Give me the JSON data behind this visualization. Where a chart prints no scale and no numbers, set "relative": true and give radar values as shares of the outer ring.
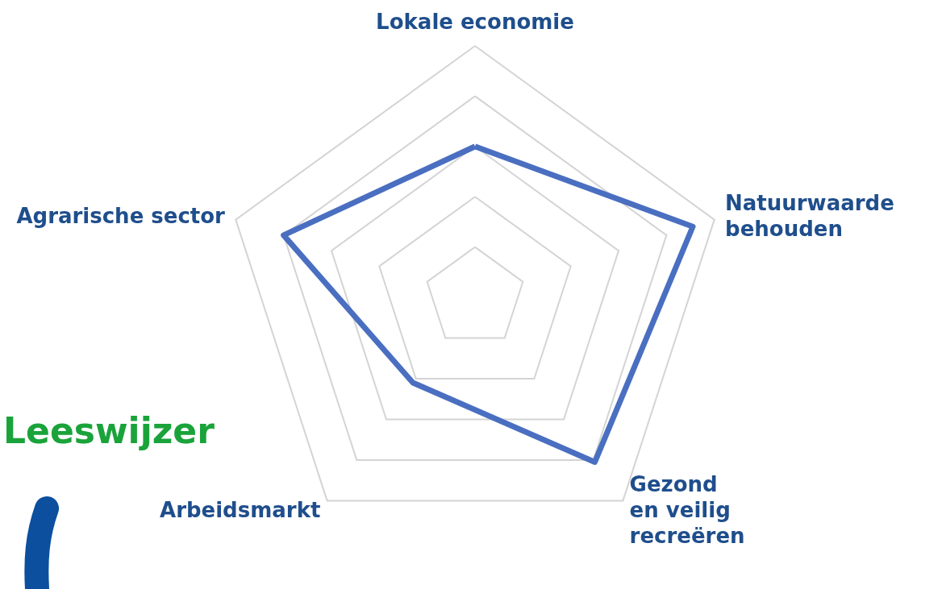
{
  "chart_data": {
    "type": "radar",
    "relative": true,
    "categories": [
      "Lokale economie",
      "Natuurwaarde\nbehouden",
      "Gezond\nen veilig\nrecreëren",
      "Arbeidsmarkt",
      "Agrarische sector"
    ],
    "series": [
      {
        "color": "#4a6fc1",
        "values": [
          0.6,
          0.91,
          0.81,
          0.42,
          0.8
        ]
      }
    ],
    "marker": "none",
    "annotations": [
      "Leeswijzer"
    ]
  }
}
